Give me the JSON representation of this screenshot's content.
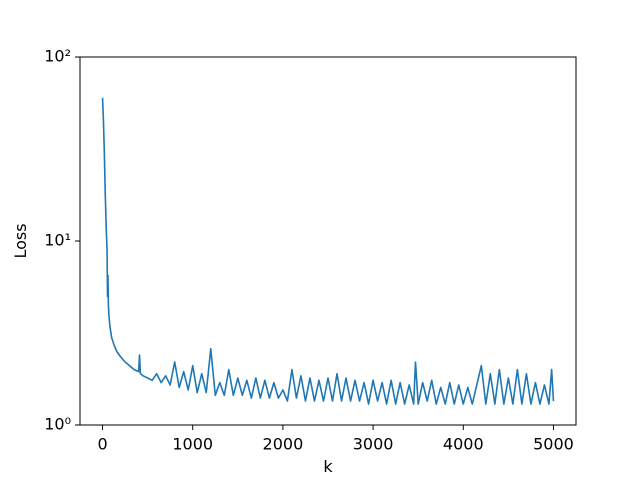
{
  "chart_data": {
    "type": "line",
    "xlabel": "k",
    "ylabel": "Loss",
    "x": [
      0,
      10,
      20,
      30,
      40,
      50,
      55,
      60,
      65,
      70,
      80,
      100,
      130,
      160,
      200,
      250,
      300,
      350,
      400,
      410,
      420,
      450,
      500,
      550,
      600,
      650,
      700,
      750,
      800,
      850,
      900,
      950,
      1000,
      1050,
      1100,
      1150,
      1200,
      1250,
      1300,
      1350,
      1400,
      1450,
      1500,
      1550,
      1600,
      1650,
      1700,
      1750,
      1800,
      1850,
      1900,
      1950,
      2000,
      2050,
      2100,
      2150,
      2200,
      2250,
      2300,
      2350,
      2400,
      2450,
      2500,
      2550,
      2600,
      2650,
      2700,
      2750,
      2800,
      2850,
      2900,
      2950,
      3000,
      3050,
      3100,
      3150,
      3200,
      3250,
      3300,
      3350,
      3400,
      3450,
      3470,
      3500,
      3550,
      3600,
      3650,
      3700,
      3750,
      3800,
      3850,
      3900,
      3950,
      4000,
      4050,
      4100,
      4150,
      4200,
      4250,
      4300,
      4350,
      4400,
      4450,
      4500,
      4550,
      4600,
      4650,
      4700,
      4750,
      4800,
      4850,
      4900,
      4950,
      4980,
      5000
    ],
    "series": [
      {
        "color": "#1f77b4",
        "values": [
          60,
          45,
          30,
          18,
          12,
          9,
          5,
          6.5,
          4.5,
          4,
          3.5,
          3,
          2.7,
          2.5,
          2.35,
          2.2,
          2.1,
          2.0,
          1.95,
          2.4,
          1.9,
          1.85,
          1.8,
          1.75,
          1.9,
          1.7,
          1.85,
          1.65,
          2.2,
          1.6,
          1.95,
          1.55,
          2.1,
          1.5,
          1.9,
          1.5,
          2.6,
          1.45,
          1.7,
          1.45,
          2.0,
          1.45,
          1.8,
          1.45,
          1.75,
          1.4,
          1.8,
          1.4,
          1.75,
          1.4,
          1.7,
          1.4,
          1.55,
          1.35,
          2.0,
          1.4,
          1.85,
          1.35,
          1.8,
          1.35,
          1.75,
          1.35,
          1.8,
          1.35,
          1.9,
          1.35,
          1.8,
          1.35,
          1.75,
          1.35,
          1.7,
          1.3,
          1.75,
          1.35,
          1.7,
          1.3,
          1.75,
          1.3,
          1.7,
          1.3,
          1.65,
          1.3,
          2.2,
          1.3,
          1.7,
          1.35,
          1.75,
          1.3,
          1.6,
          1.3,
          1.7,
          1.3,
          1.65,
          1.3,
          1.6,
          1.3,
          1.65,
          2.1,
          1.3,
          1.9,
          1.3,
          2.0,
          1.3,
          1.8,
          1.3,
          2.0,
          1.3,
          1.9,
          1.3,
          1.7,
          1.3,
          1.65,
          1.3,
          2.0,
          1.35
        ]
      }
    ],
    "xlim": [
      -250,
      5250
    ],
    "xticks": [
      0,
      1000,
      2000,
      3000,
      4000,
      5000
    ],
    "ylim": [
      1,
      100
    ],
    "ylog": true,
    "yticks": [
      {
        "value": 1,
        "label": "10⁰"
      },
      {
        "value": 10,
        "label": "10¹"
      },
      {
        "value": 100,
        "label": "10²"
      }
    ]
  }
}
